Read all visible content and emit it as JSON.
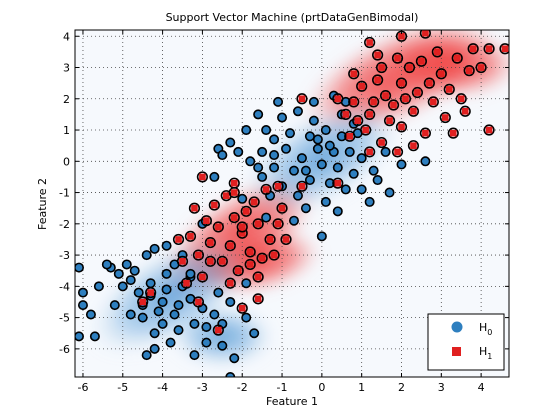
{
  "chart_data": {
    "type": "scatter",
    "title": "Support Vector Machine (prtDataGenBimodal)",
    "xlabel": "Feature 1",
    "ylabel": "Feature 2",
    "xlim": [
      -6.2,
      4.7
    ],
    "ylim": [
      -6.9,
      4.2
    ],
    "xticks": [
      -6,
      -5,
      -4,
      -3,
      -2,
      -1,
      0,
      1,
      2,
      3,
      4
    ],
    "yticks": [
      -6,
      -5,
      -4,
      -3,
      -2,
      -1,
      0,
      1,
      2,
      3,
      4
    ],
    "grid": true,
    "legend_position": "bottom-right",
    "background_regions": [
      {
        "class": "H1",
        "color": "#f03c3c",
        "description": "decision region",
        "centers": [
          [
            1.8,
            2.6
          ],
          [
            -2.0,
            -2.3
          ]
        ]
      },
      {
        "class": "H0",
        "color": "#3c8ad0",
        "description": "decision region",
        "centers": [
          [
            0.2,
            0.1
          ],
          [
            -4.0,
            -4.2
          ]
        ]
      }
    ],
    "series": [
      {
        "name": "H_0",
        "label_main": "H",
        "label_sub": "0",
        "marker": "circle",
        "color": "#2e7fbf",
        "points": [
          [
            -4.7,
            -3.5
          ],
          [
            -4.3,
            -3.9
          ],
          [
            -3.9,
            -4.1
          ],
          [
            -3.7,
            -3.3
          ],
          [
            -4.3,
            -4.3
          ],
          [
            -3.6,
            -4.6
          ],
          [
            -4.1,
            -4.8
          ],
          [
            -3.3,
            -4.4
          ],
          [
            -3.9,
            -3.6
          ],
          [
            -4.4,
            -3.0
          ],
          [
            -4.5,
            -4.6
          ],
          [
            -4.0,
            -5.2
          ],
          [
            -3.6,
            -5.4
          ],
          [
            -3.2,
            -5.2
          ],
          [
            -3.8,
            -5.8
          ],
          [
            -4.2,
            -5.5
          ],
          [
            -5.0,
            -4.0
          ],
          [
            -4.8,
            -3.8
          ],
          [
            -3.5,
            -3.0
          ],
          [
            -3.3,
            -3.7
          ],
          [
            -4.6,
            -4.2
          ],
          [
            -3.0,
            -4.7
          ],
          [
            -2.9,
            -5.3
          ],
          [
            -4.2,
            -2.8
          ],
          [
            -3.9,
            -2.7
          ],
          [
            -4.5,
            -5.0
          ],
          [
            -3.5,
            -4.0
          ],
          [
            -4.0,
            -4.5
          ],
          [
            -3.7,
            -4.9
          ],
          [
            -4.8,
            -4.9
          ],
          [
            -5.6,
            -4.0
          ],
          [
            -5.3,
            -3.4
          ],
          [
            -5.8,
            -4.9
          ],
          [
            -6.1,
            -3.4
          ],
          [
            -6.0,
            -4.2
          ],
          [
            -5.1,
            -3.6
          ],
          [
            -5.7,
            -5.6
          ],
          [
            -6.1,
            -5.6
          ],
          [
            -6.0,
            -4.6
          ],
          [
            -5.2,
            -4.6
          ],
          [
            -5.4,
            -3.3
          ],
          [
            -4.9,
            -3.3
          ],
          [
            -2.9,
            -5.8
          ],
          [
            -2.5,
            -5.9
          ],
          [
            -3.2,
            -6.2
          ],
          [
            -2.5,
            -5.2
          ],
          [
            -2.3,
            -4.5
          ],
          [
            -2.7,
            -4.9
          ],
          [
            -2.2,
            -6.3
          ],
          [
            -2.3,
            -6.9
          ],
          [
            -1.7,
            -5.5
          ],
          [
            -1.9,
            -5.0
          ],
          [
            -4.2,
            -6.0
          ],
          [
            -4.4,
            -6.2
          ],
          [
            -2.6,
            -4.2
          ],
          [
            -1.9,
            -3.9
          ],
          [
            -0.3,
            0.8
          ],
          [
            0.1,
            1.0
          ],
          [
            0.5,
            0.8
          ],
          [
            -0.1,
            0.4
          ],
          [
            0.3,
            0.3
          ],
          [
            0.7,
            0.3
          ],
          [
            -0.5,
            0.1
          ],
          [
            0.0,
            -0.1
          ],
          [
            0.4,
            -0.2
          ],
          [
            0.8,
            -0.4
          ],
          [
            -0.7,
            -0.3
          ],
          [
            -0.3,
            -0.6
          ],
          [
            0.2,
            -0.7
          ],
          [
            0.6,
            -0.9
          ],
          [
            -0.9,
            0.4
          ],
          [
            -1.2,
            0.7
          ],
          [
            -1.5,
            0.3
          ],
          [
            -1.0,
            -0.8
          ],
          [
            -0.6,
            -1.1
          ],
          [
            0.1,
            -1.3
          ],
          [
            -0.2,
            1.3
          ],
          [
            0.5,
            1.5
          ],
          [
            -0.6,
            1.6
          ],
          [
            -1.0,
            1.4
          ],
          [
            1.0,
            0.1
          ],
          [
            1.3,
            -0.3
          ],
          [
            1.0,
            -0.9
          ],
          [
            1.4,
            -0.6
          ],
          [
            1.7,
            -1.0
          ],
          [
            1.2,
            -1.3
          ],
          [
            -1.2,
            -0.2
          ],
          [
            -1.5,
            -0.5
          ],
          [
            -1.3,
            -1.1
          ],
          [
            -0.4,
            -1.5
          ],
          [
            0.4,
            -1.6
          ],
          [
            -1.4,
            1.0
          ],
          [
            -2.6,
            0.4
          ],
          [
            -2.5,
            0.2
          ],
          [
            -2.1,
            0.3
          ],
          [
            -1.8,
            0.0
          ],
          [
            -1.6,
            -0.2
          ],
          [
            -1.2,
            0.2
          ],
          [
            0.9,
            0.9
          ],
          [
            0.6,
            1.9
          ],
          [
            0.3,
            2.1
          ],
          [
            -0.2,
            1.9
          ],
          [
            -1.1,
            1.9
          ],
          [
            -1.6,
            1.5
          ],
          [
            -1.9,
            1.0
          ],
          [
            -2.3,
            0.6
          ],
          [
            2.6,
            0.0
          ],
          [
            1.6,
            0.3
          ],
          [
            2.0,
            -0.1
          ],
          [
            0.0,
            -2.4
          ],
          [
            -0.7,
            -1.9
          ],
          [
            -1.4,
            -1.8
          ],
          [
            -2.0,
            -1.2
          ],
          [
            -2.7,
            -0.5
          ],
          [
            -3.0,
            -2.0
          ],
          [
            -3.3,
            -3.6
          ],
          [
            -0.1,
            0.7
          ],
          [
            0.2,
            0.5
          ],
          [
            -0.4,
            -0.3
          ],
          [
            0.8,
            1.2
          ],
          [
            -0.8,
            0.9
          ]
        ]
      },
      {
        "name": "H_1",
        "label_main": "H",
        "label_sub": "1",
        "marker": "square",
        "color": "#e02020",
        "points": [
          [
            1.2,
            1.5
          ],
          [
            1.6,
            2.1
          ],
          [
            2.0,
            2.5
          ],
          [
            2.4,
            2.2
          ],
          [
            1.8,
            1.8
          ],
          [
            1.4,
            2.6
          ],
          [
            2.2,
            3.0
          ],
          [
            2.7,
            2.5
          ],
          [
            3.0,
            2.8
          ],
          [
            2.5,
            3.2
          ],
          [
            1.9,
            3.3
          ],
          [
            1.5,
            3.0
          ],
          [
            1.0,
            2.4
          ],
          [
            0.8,
            1.9
          ],
          [
            2.8,
            1.9
          ],
          [
            3.2,
            2.3
          ],
          [
            3.5,
            2.0
          ],
          [
            2.3,
            1.6
          ],
          [
            1.7,
            1.3
          ],
          [
            1.1,
            1.0
          ],
          [
            3.4,
            3.3
          ],
          [
            3.7,
            2.9
          ],
          [
            2.9,
            3.5
          ],
          [
            2.1,
            2.0
          ],
          [
            1.3,
            1.9
          ],
          [
            0.9,
            1.3
          ],
          [
            0.7,
            0.8
          ],
          [
            1.5,
            0.6
          ],
          [
            2.0,
            1.1
          ],
          [
            3.1,
            1.4
          ],
          [
            3.6,
            1.6
          ],
          [
            3.3,
            0.9
          ],
          [
            2.6,
            0.9
          ],
          [
            2.3,
            0.5
          ],
          [
            1.9,
            0.3
          ],
          [
            1.2,
            0.3
          ],
          [
            0.6,
            1.5
          ],
          [
            0.4,
            2.0
          ],
          [
            0.8,
            2.8
          ],
          [
            1.4,
            3.4
          ],
          [
            2.6,
            4.1
          ],
          [
            3.8,
            3.6
          ],
          [
            4.2,
            3.6
          ],
          [
            4.6,
            3.6
          ],
          [
            4.2,
            1.0
          ],
          [
            4.0,
            3.0
          ],
          [
            2.0,
            4.0
          ],
          [
            1.2,
            3.8
          ],
          [
            -2.0,
            -2.3
          ],
          [
            -1.6,
            -2.0
          ],
          [
            -2.3,
            -2.7
          ],
          [
            -1.8,
            -2.9
          ],
          [
            -2.6,
            -2.1
          ],
          [
            -1.3,
            -2.5
          ],
          [
            -2.2,
            -1.8
          ],
          [
            -2.8,
            -2.6
          ],
          [
            -1.5,
            -3.1
          ],
          [
            -2.5,
            -3.2
          ],
          [
            -2.9,
            -1.9
          ],
          [
            -1.9,
            -1.6
          ],
          [
            -1.1,
            -2.0
          ],
          [
            -1.2,
            -3.0
          ],
          [
            -2.1,
            -3.5
          ],
          [
            -3.1,
            -3.0
          ],
          [
            -3.3,
            -2.4
          ],
          [
            -2.7,
            -1.4
          ],
          [
            -2.4,
            -1.1
          ],
          [
            -1.7,
            -1.3
          ],
          [
            -1.0,
            -1.5
          ],
          [
            -0.9,
            -2.5
          ],
          [
            -1.6,
            -3.7
          ],
          [
            -2.3,
            -3.9
          ],
          [
            -3.0,
            -3.7
          ],
          [
            -3.5,
            -3.2
          ],
          [
            -3.6,
            -2.5
          ],
          [
            -3.2,
            -1.5
          ],
          [
            -2.2,
            -0.7
          ],
          [
            -1.4,
            -0.9
          ],
          [
            -4.3,
            -4.2
          ],
          [
            -4.5,
            -4.5
          ],
          [
            -3.1,
            -4.5
          ],
          [
            -3.4,
            -3.9
          ],
          [
            -2.6,
            -5.4
          ],
          [
            -2.0,
            -4.7
          ],
          [
            -1.6,
            -4.4
          ],
          [
            -3.0,
            -0.5
          ],
          [
            -2.2,
            -1.0
          ],
          [
            -0.5,
            -0.8
          ],
          [
            -0.5,
            2.0
          ],
          [
            0.4,
            -0.7
          ],
          [
            -1.1,
            -0.8
          ],
          [
            -2.0,
            -2.1
          ],
          [
            -1.8,
            -3.3
          ],
          [
            -2.8,
            -3.2
          ]
        ]
      }
    ]
  },
  "legend": {
    "entries": [
      {
        "main": "H",
        "sub": "0"
      },
      {
        "main": "H",
        "sub": "1"
      }
    ]
  }
}
